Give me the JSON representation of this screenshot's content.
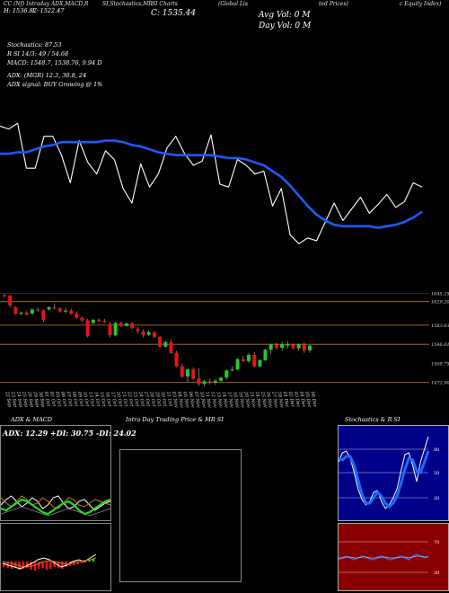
{
  "header": {
    "line1": [
      "CC (Nf) Intraday ADX,MACD,R",
      "SI,Stochastics,MR",
      "SI Charts",
      "(Global Lis",
      "ted Prices)",
      "c Equity Index)"
    ],
    "h_label": "H: 1536.87",
    "l_label": "L: 1522.47",
    "c_label": "C: 1535.44",
    "avg_vol": "Avg Vol: 0   M",
    "day_vol": "Day Vol: 0   M"
  },
  "indicators": {
    "stochastics": "Stochastics: 87.53",
    "rsi": "R                 SI 14/3: 49 / 54.68",
    "macd": "MACD: 1548.7,  1538.76,  9.94  D",
    "adx": "ADX:                      (MGR) 12.3,  30.8,  24",
    "adx_signal": "ADX  signal:                       BUY Growing @ 1%"
  },
  "colors": {
    "background": "#000000",
    "price_line": "#ffffff",
    "ma_line": "#1a5cff",
    "level_line": "#c47a1e",
    "up_candle": "#22cc22",
    "down_candle": "#ee1111",
    "stoch_bg": "#000088",
    "rsi_bg": "#880000"
  },
  "chart_data": [
    {
      "type": "line",
      "name": "price-vs-average",
      "series": [
        {
          "values": [
            1575,
            1573,
            1577,
            1546,
            1546,
            1568,
            1568,
            1555,
            1536,
            1565,
            1550,
            1542,
            1558,
            1552,
            1532,
            1522,
            1549,
            1533,
            1542,
            1560,
            1568,
            1556,
            1548,
            1551,
            1569,
            1535,
            1533,
            1552,
            1548,
            1542,
            1544,
            1520,
            1532,
            1500,
            1494,
            1498,
            1496,
            1509,
            1522,
            1510,
            1518,
            1526,
            1515,
            1521,
            1528,
            1519,
            1523,
            1536,
            1533
          ]
        },
        {
          "values": [
            1556,
            1556,
            1557,
            1557,
            1559,
            1561,
            1562,
            1564,
            1564,
            1564,
            1564,
            1564,
            1565,
            1565,
            1564,
            1562,
            1561,
            1559,
            1557,
            1556,
            1555,
            1555,
            1555,
            1555,
            1555,
            1554,
            1553,
            1553,
            1552,
            1550,
            1548,
            1544,
            1540,
            1534,
            1527,
            1520,
            1514,
            1510,
            1507,
            1506,
            1506,
            1506,
            1506,
            1505,
            1506,
            1507,
            1509,
            1512,
            1516
          ]
        }
      ]
    },
    {
      "type": "bar",
      "name": "candles",
      "x": [
        "22 Sep",
        "23 Sep",
        "24 Sep",
        "25 Sep",
        "26 Sep",
        "29 Sep",
        "30 Sep",
        "01 Oct",
        "02 Oct",
        "03 Oct",
        "06 Oct",
        "07 Oct",
        "08 Oct",
        "09 Oct",
        "10 Oct",
        "13 Oct",
        "14 Oct",
        "15 Oct",
        "16 Oct",
        "17 Oct",
        "20 Oct",
        "21 Oct",
        "22 Oct",
        "23 Oct",
        "24 Oct",
        "27 Oct",
        "28 Oct",
        "29 Oct",
        "30 Oct",
        "31 Oct",
        "03 Nov",
        "04 Nov",
        "05 Nov",
        "06 Nov",
        "07 Nov",
        "10 Nov",
        "11 Nov",
        "12 Nov",
        "13 Nov",
        "14 Nov",
        "17 Nov",
        "18 Nov",
        "19 Nov",
        "20 Nov",
        "21 Nov",
        "24 Nov",
        "25 Nov",
        "26 Nov",
        "27 Nov",
        "28 Nov",
        "01 Dec",
        "02 Dec",
        "03 Dec",
        "04 Dec",
        "05 Dec",
        "08 Dec"
      ],
      "ohlc": [
        [
          1642,
          1644,
          1637,
          1641
        ],
        [
          1641,
          1642,
          1618,
          1622
        ],
        [
          1618,
          1620,
          1604,
          1606
        ],
        [
          1606,
          1610,
          1603,
          1608
        ],
        [
          1608,
          1611,
          1603,
          1604
        ],
        [
          1606,
          1616,
          1605,
          1614
        ],
        [
          1614,
          1618,
          1610,
          1612
        ],
        [
          1612,
          1614,
          1590,
          1594
        ],
        [
          1614,
          1620,
          1612,
          1618
        ],
        [
          1618,
          1626,
          1614,
          1616
        ],
        [
          1616,
          1618,
          1608,
          1610
        ],
        [
          1610,
          1618,
          1606,
          1612
        ],
        [
          1612,
          1616,
          1604,
          1606
        ],
        [
          1606,
          1610,
          1596,
          1598
        ],
        [
          1598,
          1600,
          1590,
          1593
        ],
        [
          1593,
          1596,
          1560,
          1562
        ],
        [
          1588,
          1596,
          1586,
          1594
        ],
        [
          1594,
          1597,
          1590,
          1592
        ],
        [
          1592,
          1596,
          1588,
          1590
        ],
        [
          1586,
          1590,
          1560,
          1564
        ],
        [
          1564,
          1590,
          1562,
          1588
        ],
        [
          1588,
          1590,
          1580,
          1582
        ],
        [
          1582,
          1588,
          1581,
          1587
        ],
        [
          1587,
          1590,
          1576,
          1578
        ],
        [
          1576,
          1580,
          1568,
          1572
        ],
        [
          1572,
          1576,
          1560,
          1565
        ],
        [
          1565,
          1573,
          1563,
          1570
        ],
        [
          1570,
          1572,
          1559,
          1561
        ],
        [
          1561,
          1563,
          1540,
          1542
        ],
        [
          1542,
          1554,
          1540,
          1551
        ],
        [
          1551,
          1556,
          1528,
          1530
        ],
        [
          1530,
          1534,
          1502,
          1504
        ],
        [
          1504,
          1508,
          1482,
          1484
        ],
        [
          1484,
          1500,
          1474,
          1498
        ],
        [
          1498,
          1502,
          1478,
          1480
        ],
        [
          1480,
          1500,
          1466,
          1470
        ],
        [
          1470,
          1478,
          1465,
          1475
        ],
        [
          1475,
          1480,
          1469,
          1473
        ],
        [
          1473,
          1479,
          1468,
          1476
        ],
        [
          1476,
          1484,
          1474,
          1482
        ],
        [
          1482,
          1498,
          1478,
          1496
        ],
        [
          1496,
          1504,
          1494,
          1498
        ],
        [
          1498,
          1520,
          1496,
          1518
        ],
        [
          1518,
          1524,
          1512,
          1514
        ],
        [
          1514,
          1530,
          1510,
          1526
        ],
        [
          1526,
          1532,
          1502,
          1504
        ],
        [
          1504,
          1518,
          1502,
          1516
        ],
        [
          1516,
          1538,
          1514,
          1536
        ],
        [
          1536,
          1548,
          1528,
          1546
        ],
        [
          1546,
          1550,
          1536,
          1540
        ],
        [
          1540,
          1552,
          1534,
          1547
        ],
        [
          1544,
          1552,
          1538,
          1546
        ],
        [
          1546,
          1548,
          1536,
          1539
        ],
        [
          1539,
          1548,
          1534,
          1546
        ],
        [
          1546,
          1550,
          1530,
          1535
        ],
        [
          1535,
          1546,
          1530,
          1544
        ]
      ],
      "y_ticks": [
        1645.25,
        1629.2,
        1583.63,
        1546.61,
        1509.75,
        1472.9
      ],
      "levels": [
        1629.2,
        1583.63,
        1546.61,
        1472.9
      ],
      "ylim": [
        1460,
        1660
      ]
    },
    {
      "type": "line",
      "name": "adx-macd",
      "title": "ADX  & MACD",
      "subtitle": "ADX: 12.29  +DI: 30.75  -DI: 24.02"
    },
    {
      "type": "line",
      "name": "intraday",
      "title": "Intra  Day Trading Price  & MR                SI"
    },
    {
      "type": "line",
      "name": "stochastics-rsi",
      "title": "Stochastics & R                SI",
      "stoch_ticks": [
        "80",
        "50",
        "20"
      ],
      "rsi_ticks": [
        "70",
        "30"
      ]
    }
  ]
}
